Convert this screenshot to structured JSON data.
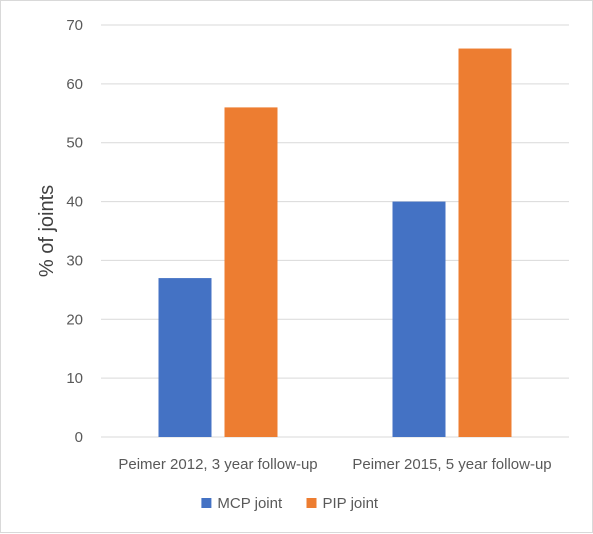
{
  "chart_data": {
    "type": "bar",
    "title": "",
    "xlabel": "",
    "ylabel": "% of joints",
    "categories": [
      "Peimer 2012, 3 year follow-up",
      "Peimer 2015, 5 year follow-up"
    ],
    "series": [
      {
        "name": "MCP joint",
        "values": [
          27,
          40
        ],
        "color": "#4472c4"
      },
      {
        "name": "PIP joint",
        "values": [
          56,
          66
        ],
        "color": "#ed7d31"
      }
    ],
    "ylim": [
      0,
      70
    ],
    "yticks": [
      0,
      10,
      20,
      30,
      40,
      50,
      60,
      70
    ],
    "grid": true,
    "legend_position": "bottom"
  }
}
